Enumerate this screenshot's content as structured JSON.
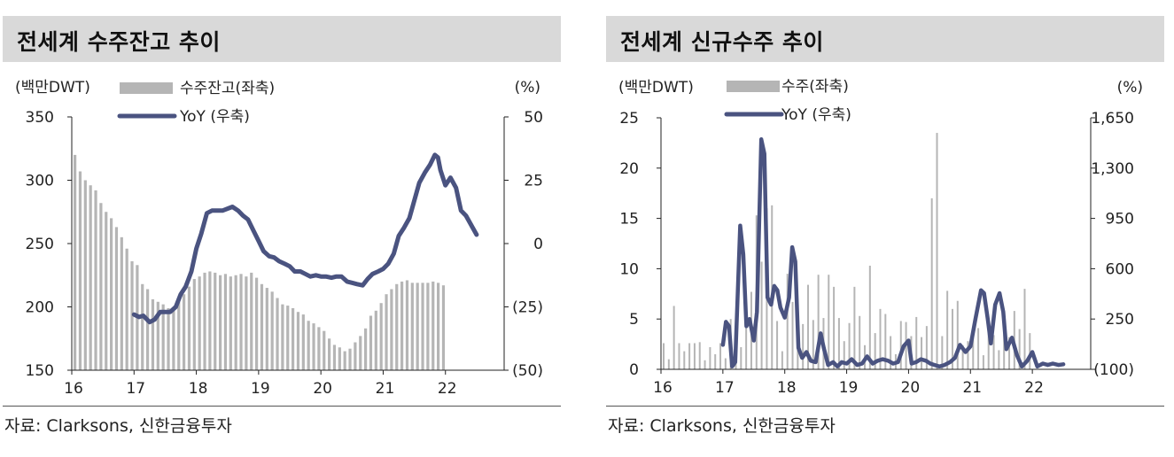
{
  "source_label": "자료:  Clarksons, 신한금융투자",
  "colors": {
    "bar": "#b5b5b5",
    "line": "#4a5380",
    "title_bg": "#d9d9d9"
  },
  "chart_data": [
    {
      "type": "bar+line",
      "title": "전세계 수주잔고 추이",
      "left_unit": "(백만DWT)",
      "right_unit": "(%)",
      "legend_bar": "수주잔고(좌축)",
      "legend_line": "YoY (우축)",
      "ylim_left": [
        150,
        350
      ],
      "yticks_left": [
        350,
        300,
        250,
        200,
        150
      ],
      "ylim_right": [
        -50,
        50
      ],
      "yticks_right": [
        "50",
        "25",
        "0",
        "(25)",
        "(50)"
      ],
      "x_range": [
        2016.0,
        2022.9
      ],
      "xticks": [
        {
          "label": "16",
          "x": 2016.0
        },
        {
          "label": "17",
          "x": 2017.0
        },
        {
          "label": "18",
          "x": 2018.0
        },
        {
          "label": "19",
          "x": 2019.0
        },
        {
          "label": "20",
          "x": 2020.0
        },
        {
          "label": "21",
          "x": 2021.0
        },
        {
          "label": "22",
          "x": 2022.0
        }
      ],
      "bar_x_start": 2016.0,
      "bar_step": 0.08333,
      "bar_values": [
        320,
        307,
        300,
        296,
        292,
        282,
        275,
        270,
        263,
        255,
        246,
        236,
        233,
        218,
        214,
        206,
        204,
        202,
        199,
        197,
        204,
        210,
        216,
        222,
        224,
        227,
        228,
        227,
        225,
        226,
        224,
        225,
        226,
        224,
        227,
        223,
        218,
        215,
        212,
        207,
        202,
        201,
        199,
        196,
        194,
        189,
        187,
        184,
        181,
        175,
        170,
        168,
        165,
        167,
        172,
        177,
        183,
        193,
        197,
        203,
        210,
        214,
        218,
        220,
        221,
        219,
        219,
        219,
        219,
        220,
        219,
        217
      ],
      "line_series": [
        {
          "x": 2017.0,
          "y": -28
        },
        {
          "x": 2017.08,
          "y": -29
        },
        {
          "x": 2017.15,
          "y": -28.5
        },
        {
          "x": 2017.25,
          "y": -31
        },
        {
          "x": 2017.33,
          "y": -30
        },
        {
          "x": 2017.42,
          "y": -27
        },
        {
          "x": 2017.58,
          "y": -27
        },
        {
          "x": 2017.67,
          "y": -25
        },
        {
          "x": 2017.75,
          "y": -20
        },
        {
          "x": 2017.83,
          "y": -17
        },
        {
          "x": 2017.92,
          "y": -11
        },
        {
          "x": 2018.0,
          "y": -2
        },
        {
          "x": 2018.08,
          "y": 4
        },
        {
          "x": 2018.17,
          "y": 12
        },
        {
          "x": 2018.25,
          "y": 13
        },
        {
          "x": 2018.42,
          "y": 13
        },
        {
          "x": 2018.58,
          "y": 14.5
        },
        {
          "x": 2018.67,
          "y": 13
        },
        {
          "x": 2018.75,
          "y": 11
        },
        {
          "x": 2018.83,
          "y": 9.5
        },
        {
          "x": 2018.92,
          "y": 5
        },
        {
          "x": 2019.0,
          "y": 1
        },
        {
          "x": 2019.08,
          "y": -3
        },
        {
          "x": 2019.17,
          "y": -5
        },
        {
          "x": 2019.25,
          "y": -5.5
        },
        {
          "x": 2019.33,
          "y": -7
        },
        {
          "x": 2019.42,
          "y": -8
        },
        {
          "x": 2019.5,
          "y": -9
        },
        {
          "x": 2019.58,
          "y": -11
        },
        {
          "x": 2019.67,
          "y": -11
        },
        {
          "x": 2019.75,
          "y": -12
        },
        {
          "x": 2019.83,
          "y": -13
        },
        {
          "x": 2019.92,
          "y": -12.5
        },
        {
          "x": 2020.0,
          "y": -13
        },
        {
          "x": 2020.08,
          "y": -13
        },
        {
          "x": 2020.17,
          "y": -13.5
        },
        {
          "x": 2020.25,
          "y": -13
        },
        {
          "x": 2020.33,
          "y": -13
        },
        {
          "x": 2020.42,
          "y": -15
        },
        {
          "x": 2020.5,
          "y": -15.5
        },
        {
          "x": 2020.58,
          "y": -16
        },
        {
          "x": 2020.67,
          "y": -16.5
        },
        {
          "x": 2020.75,
          "y": -14
        },
        {
          "x": 2020.83,
          "y": -12
        },
        {
          "x": 2020.92,
          "y": -11
        },
        {
          "x": 2021.0,
          "y": -10
        },
        {
          "x": 2021.08,
          "y": -8
        },
        {
          "x": 2021.17,
          "y": -4
        },
        {
          "x": 2021.25,
          "y": 3
        },
        {
          "x": 2021.33,
          "y": 6
        },
        {
          "x": 2021.42,
          "y": 10
        },
        {
          "x": 2021.5,
          "y": 17
        },
        {
          "x": 2021.58,
          "y": 24
        },
        {
          "x": 2021.67,
          "y": 28
        },
        {
          "x": 2021.75,
          "y": 31
        },
        {
          "x": 2021.83,
          "y": 35
        },
        {
          "x": 2021.88,
          "y": 34
        },
        {
          "x": 2021.92,
          "y": 29
        },
        {
          "x": 2022.0,
          "y": 23
        },
        {
          "x": 2022.08,
          "y": 26
        },
        {
          "x": 2022.17,
          "y": 22
        },
        {
          "x": 2022.25,
          "y": 13
        },
        {
          "x": 2022.33,
          "y": 11
        },
        {
          "x": 2022.42,
          "y": 7
        },
        {
          "x": 2022.5,
          "y": 3.5
        }
      ]
    },
    {
      "type": "bar+line",
      "title": "전세계 신규수주 추이",
      "left_unit": "(백만DWT)",
      "right_unit": "(%)",
      "legend_bar": "수주(좌축)",
      "legend_line": "YoY (우축)",
      "ylim_left": [
        0,
        25
      ],
      "yticks_left": [
        25,
        20,
        15,
        10,
        5,
        0
      ],
      "ylim_right": [
        -100,
        1650
      ],
      "yticks_right": [
        "1,650",
        "1,300",
        "950",
        "600",
        "250",
        "(100)"
      ],
      "x_range": [
        2016.0,
        2022.9
      ],
      "xticks": [
        {
          "label": "16",
          "x": 2016.0
        },
        {
          "label": "17",
          "x": 2017.0
        },
        {
          "label": "18",
          "x": 2018.0
        },
        {
          "label": "19",
          "x": 2019.0
        },
        {
          "label": "20",
          "x": 2020.0
        },
        {
          "label": "21",
          "x": 2021.0
        },
        {
          "label": "22",
          "x": 2022.0
        }
      ],
      "bar_x_start": 2016.0,
      "bar_step": 0.08333,
      "bar_values": [
        2.6,
        1.0,
        6.3,
        2.6,
        1.8,
        2.6,
        2.6,
        2.7,
        0.9,
        2.2,
        1.5,
        2.6,
        1.1,
        5.0,
        4.5,
        2.2,
        6.5,
        7.7,
        15.3,
        10.7,
        16.0,
        16.3,
        4.8,
        1.8,
        9.5,
        6.7,
        2.6,
        4.5,
        8.4,
        4.9,
        9.4,
        5.1,
        9.4,
        8.2,
        5.1,
        2.8,
        4.6,
        8.2,
        5.3,
        2.4,
        10.3,
        3.6,
        6.0,
        5.5,
        3.3,
        1.5,
        4.8,
        4.7,
        3.3,
        5.2,
        3.2,
        4.3,
        17.0,
        23.5,
        3.3,
        7.8,
        6.0,
        6.8,
        2.4,
        2.8,
        4.0,
        4.1,
        1.4,
        4.3,
        3.4,
        1.9,
        3.6,
        3.2,
        5.8,
        4.0,
        8.0,
        3.6
      ],
      "line_series": [
        {
          "x": 2017.0,
          "y": 70
        },
        {
          "x": 2017.05,
          "y": 230
        },
        {
          "x": 2017.1,
          "y": 200
        },
        {
          "x": 2017.15,
          "y": -80
        },
        {
          "x": 2017.2,
          "y": -50
        },
        {
          "x": 2017.28,
          "y": 900
        },
        {
          "x": 2017.33,
          "y": 700
        },
        {
          "x": 2017.38,
          "y": 200
        },
        {
          "x": 2017.43,
          "y": 250
        },
        {
          "x": 2017.5,
          "y": 100
        },
        {
          "x": 2017.55,
          "y": 300
        },
        {
          "x": 2017.62,
          "y": 1500
        },
        {
          "x": 2017.67,
          "y": 1400
        },
        {
          "x": 2017.72,
          "y": 400
        },
        {
          "x": 2017.78,
          "y": 350
        },
        {
          "x": 2017.83,
          "y": 480
        },
        {
          "x": 2017.88,
          "y": 450
        },
        {
          "x": 2017.93,
          "y": 330
        },
        {
          "x": 2018.0,
          "y": 260
        },
        {
          "x": 2018.07,
          "y": 400
        },
        {
          "x": 2018.12,
          "y": 750
        },
        {
          "x": 2018.17,
          "y": 650
        },
        {
          "x": 2018.22,
          "y": 50
        },
        {
          "x": 2018.28,
          "y": -20
        },
        {
          "x": 2018.35,
          "y": 20
        },
        {
          "x": 2018.42,
          "y": -40
        },
        {
          "x": 2018.5,
          "y": -50
        },
        {
          "x": 2018.58,
          "y": 150
        },
        {
          "x": 2018.63,
          "y": 50
        },
        {
          "x": 2018.7,
          "y": -70
        },
        {
          "x": 2018.78,
          "y": -50
        },
        {
          "x": 2018.85,
          "y": -80
        },
        {
          "x": 2018.92,
          "y": -50
        },
        {
          "x": 2019.0,
          "y": -60
        },
        {
          "x": 2019.08,
          "y": -30
        },
        {
          "x": 2019.17,
          "y": -70
        },
        {
          "x": 2019.25,
          "y": -60
        },
        {
          "x": 2019.33,
          "y": -10
        },
        {
          "x": 2019.42,
          "y": -60
        },
        {
          "x": 2019.5,
          "y": -40
        },
        {
          "x": 2019.58,
          "y": -30
        },
        {
          "x": 2019.67,
          "y": -40
        },
        {
          "x": 2019.75,
          "y": -60
        },
        {
          "x": 2019.83,
          "y": -50
        },
        {
          "x": 2019.92,
          "y": 60
        },
        {
          "x": 2020.0,
          "y": 100
        },
        {
          "x": 2020.05,
          "y": -60
        },
        {
          "x": 2020.12,
          "y": -50
        },
        {
          "x": 2020.2,
          "y": -30
        },
        {
          "x": 2020.28,
          "y": -40
        },
        {
          "x": 2020.35,
          "y": -60
        },
        {
          "x": 2020.42,
          "y": -70
        },
        {
          "x": 2020.5,
          "y": -80
        },
        {
          "x": 2020.58,
          "y": -70
        },
        {
          "x": 2020.67,
          "y": -50
        },
        {
          "x": 2020.75,
          "y": -20
        },
        {
          "x": 2020.83,
          "y": 70
        },
        {
          "x": 2020.92,
          "y": 20
        },
        {
          "x": 2021.0,
          "y": 60
        },
        {
          "x": 2021.08,
          "y": 250
        },
        {
          "x": 2021.17,
          "y": 450
        },
        {
          "x": 2021.22,
          "y": 430
        },
        {
          "x": 2021.28,
          "y": 250
        },
        {
          "x": 2021.33,
          "y": 80
        },
        {
          "x": 2021.4,
          "y": 350
        },
        {
          "x": 2021.47,
          "y": 430
        },
        {
          "x": 2021.53,
          "y": 300
        },
        {
          "x": 2021.58,
          "y": 40
        },
        {
          "x": 2021.67,
          "y": 120
        },
        {
          "x": 2021.75,
          "y": 0
        },
        {
          "x": 2021.83,
          "y": -80
        },
        {
          "x": 2021.92,
          "y": -40
        },
        {
          "x": 2022.0,
          "y": 20
        },
        {
          "x": 2022.08,
          "y": -80
        },
        {
          "x": 2022.17,
          "y": -60
        },
        {
          "x": 2022.25,
          "y": -70
        },
        {
          "x": 2022.33,
          "y": -60
        },
        {
          "x": 2022.42,
          "y": -70
        },
        {
          "x": 2022.5,
          "y": -65
        }
      ]
    }
  ]
}
